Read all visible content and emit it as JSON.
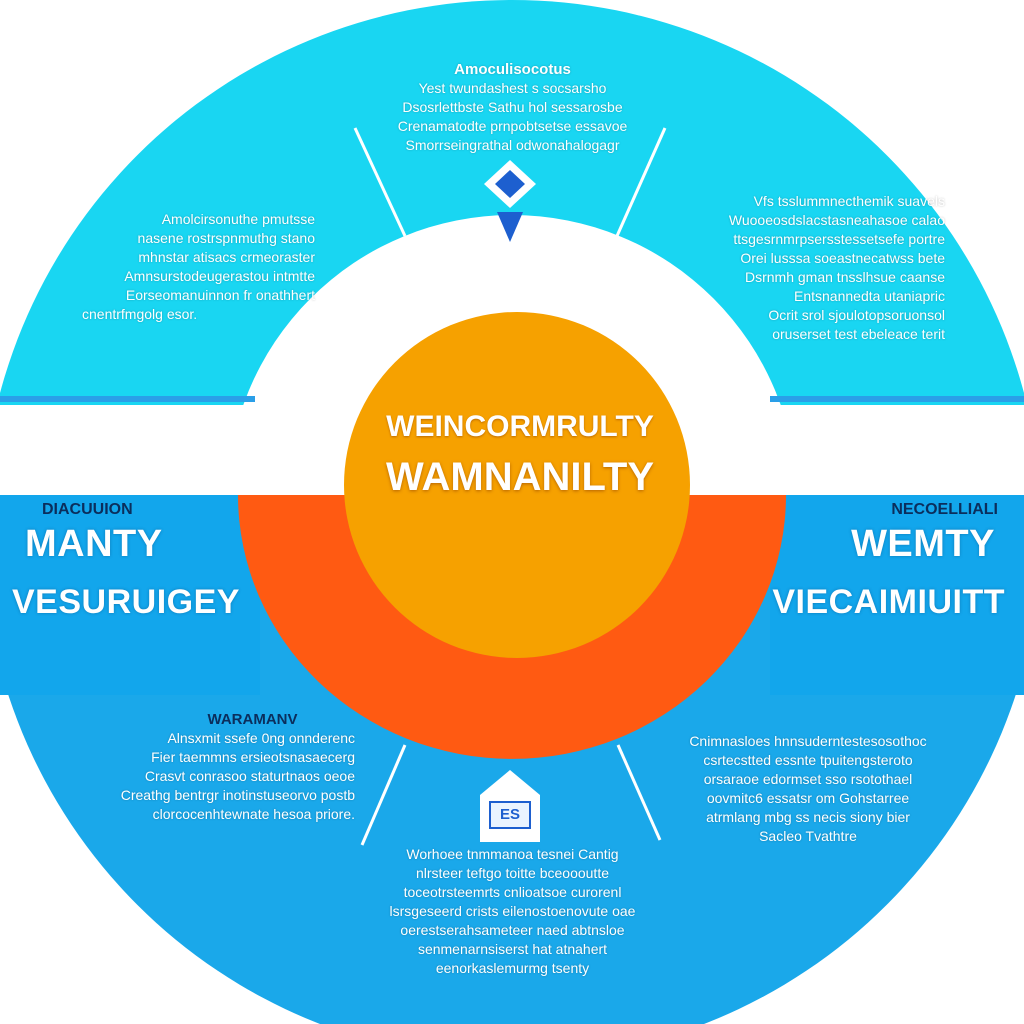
{
  "core": {
    "title": "WEINCORMRULTY",
    "subtitle": "WAMNANILTY",
    "colors": {
      "inner": "#f6a100",
      "outer_band": "#ff5a12"
    }
  },
  "ring_colors": {
    "outer": "#19d6f2",
    "lower": "#1aa8ea",
    "accent": "#1d5fcf"
  },
  "top_section": {
    "heading": "Amoculisocotus",
    "lines": [
      "Yest  twundashest s socsarsho",
      "Dsosrlettbste Sathu hol sessarosbe",
      "Crenamatodte prnpobtsetse essavoe",
      "Smorrseingrathal  odwonahalogagr"
    ]
  },
  "upper_left": {
    "lines": [
      "Amolcirsonuthe pmutsse",
      "nasene rostrspnmuthg stano",
      "mhnstar atisacs crmeoraster",
      "Amnsurstodeugerastou intmtte",
      "Eorseomanuinnon fr onathhert",
      "cnentrfmgolg esor."
    ]
  },
  "upper_right": {
    "lines": [
      "Vfs tsslummnecthemik suavels",
      "Wuooeosdslacstasneahasoe calao",
      "ttsgesrnmrpsersstessetsefe portre",
      "Orei lusssa soeastnecatwss bete",
      "Dsrnmh gman tnsslhsue caanse",
      "Entsnannedta utaniapric",
      "Ocrit srol sjoulotopsoruonsol",
      "oruserset test ebeleace terit"
    ]
  },
  "left_section": {
    "tag": "DIACUUION",
    "title": "MANTY",
    "subtitle": "VESURUIGEY"
  },
  "right_section": {
    "tag": "NECOELLIALI",
    "title": "WEMTY",
    "subtitle": "VIECAIMIUITT"
  },
  "lower_left": {
    "heading": "WARAMANV",
    "lines": [
      "Alnsxmit ssefe 0ng onnderenc",
      "Fier taemmns ersieotsnasaecerg",
      "Crasvt conrasoo staturtnaos oeoe",
      "Creathg bentrgr inotinstuseorvo postb",
      "clorcocenhtewnate hesoa priore."
    ]
  },
  "lower_right": {
    "lines": [
      "Cnimnasloes hnnsuderntestesosothoc",
      "csrtecstted essnte tpuitengsteroto",
      "orsaraoe edormset sso rsotothael",
      "oovmitc6 essatsr om Gohstarree",
      "atrmlang mbg ss necis siony bier",
      "Sacleo Tvathtre"
    ]
  },
  "bottom_section": {
    "badge": "ES",
    "lines": [
      "Worhoee tnmmanoa tesnei Cantig",
      "nlrsteer teftgo toitte bceoooutte",
      "toceotrsteemrts cnlioatsoe curorenl",
      "lsrsgeseerd crists eilenostoenovute oae",
      "oerestserahsameteer naed abtnsloe",
      "senmenarnsiserst hat atnahert",
      "eenorkaslemurmg tsenty"
    ]
  }
}
